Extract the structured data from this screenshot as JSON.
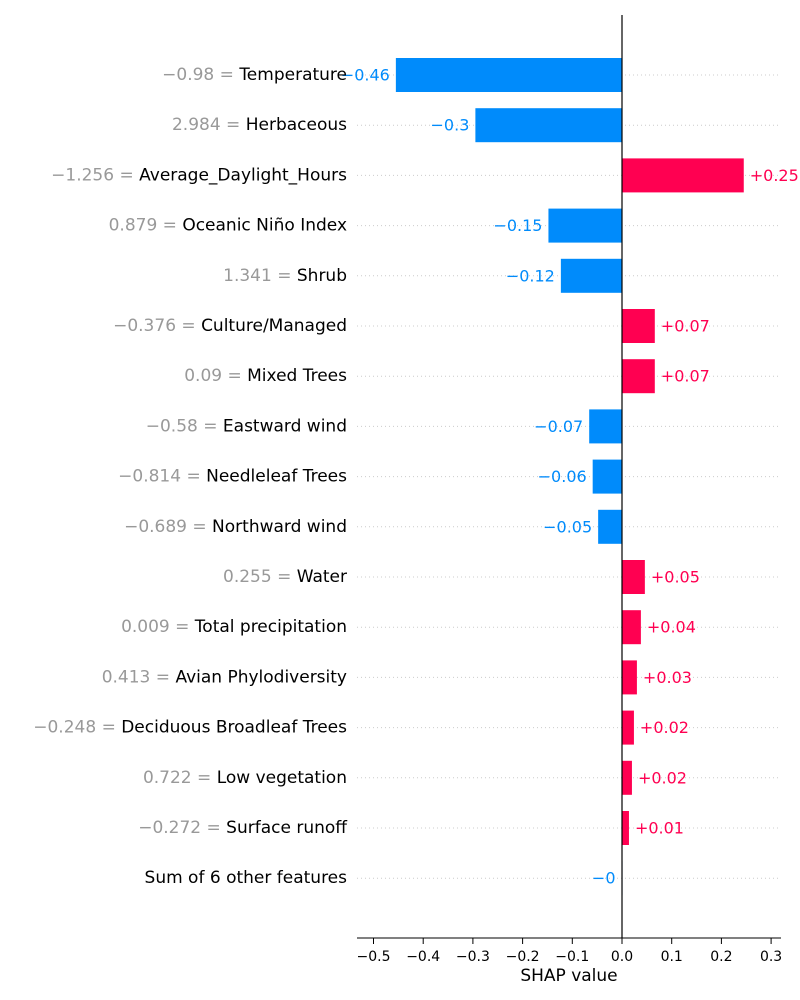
{
  "chart_data": {
    "type": "bar",
    "xlabel": "SHAP value",
    "xlim": [
      -0.53,
      0.32
    ],
    "xticks": [
      -0.5,
      -0.4,
      -0.3,
      -0.2,
      -0.1,
      0.0,
      0.1,
      0.2,
      0.3
    ],
    "xtick_labels": [
      "−0.5",
      "−0.4",
      "−0.3",
      "−0.2",
      "−0.1",
      "0.0",
      "0.1",
      "0.2",
      "0.3"
    ],
    "grid": "horizontal dotted guide per feature",
    "positive_color": "#ff0051",
    "negative_color": "#008bfb",
    "features": [
      {
        "value_label": "−0.98",
        "name": "Temperature",
        "shap": -0.455,
        "label": "−0.46"
      },
      {
        "value_label": "2.984",
        "name": "Herbaceous",
        "shap": -0.295,
        "label": "−0.3"
      },
      {
        "value_label": "−1.256",
        "name": "Average_Daylight_Hours",
        "shap": 0.245,
        "label": "+0.25"
      },
      {
        "value_label": "0.879",
        "name": "Oceanic Niño Index",
        "shap": -0.148,
        "label": "−0.15"
      },
      {
        "value_label": "1.341",
        "name": "Shrub",
        "shap": -0.123,
        "label": "−0.12"
      },
      {
        "value_label": "−0.376",
        "name": "Culture/Managed",
        "shap": 0.066,
        "label": "+0.07"
      },
      {
        "value_label": "0.09",
        "name": "Mixed Trees",
        "shap": 0.066,
        "label": "+0.07"
      },
      {
        "value_label": "−0.58",
        "name": "Eastward wind",
        "shap": -0.066,
        "label": "−0.07"
      },
      {
        "value_label": "−0.814",
        "name": "Needleleaf Trees",
        "shap": -0.059,
        "label": "−0.06"
      },
      {
        "value_label": "−0.689",
        "name": "Northward wind",
        "shap": -0.048,
        "label": "−0.05"
      },
      {
        "value_label": "0.255",
        "name": "Water",
        "shap": 0.046,
        "label": "+0.05"
      },
      {
        "value_label": "0.009",
        "name": "Total precipitation",
        "shap": 0.038,
        "label": "+0.04"
      },
      {
        "value_label": "0.413",
        "name": "Avian Phylodiversity",
        "shap": 0.03,
        "label": "+0.03"
      },
      {
        "value_label": "−0.248",
        "name": "Deciduous Broadleaf Trees",
        "shap": 0.024,
        "label": "+0.02"
      },
      {
        "value_label": "0.722",
        "name": "Low vegetation",
        "shap": 0.02,
        "label": "+0.02"
      },
      {
        "value_label": "−0.272",
        "name": "Surface runoff",
        "shap": 0.014,
        "label": "+0.01"
      },
      {
        "value_label": "",
        "name": "Sum of 6 other features",
        "shap": -0.001,
        "label": "−0"
      }
    ]
  }
}
